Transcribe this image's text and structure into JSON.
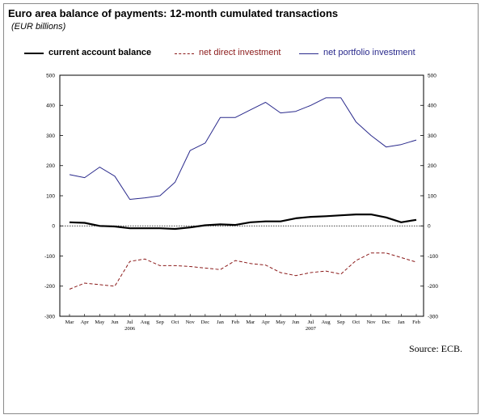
{
  "title": "Euro area balance of payments: 12-month cumulated transactions",
  "subtitle": "(EUR billions)",
  "source": "Source: ECB.",
  "legend": [
    {
      "label": "current account balance",
      "color": "#000000",
      "style": "solid-thick"
    },
    {
      "label": "net direct investment",
      "color": "#8b1a1a",
      "style": "dashed"
    },
    {
      "label": "net portfolio investment",
      "color": "#2a2a8c",
      "style": "solid"
    }
  ],
  "chart_data": {
    "type": "line",
    "x": [
      "Mar",
      "Apr",
      "May",
      "Jun",
      "Jul",
      "Aug",
      "Sep",
      "Oct",
      "Nov",
      "Dec",
      "Jan",
      "Feb",
      "Mar",
      "Apr",
      "May",
      "Jun",
      "Jul",
      "Aug",
      "Sep",
      "Oct",
      "Nov",
      "Dec",
      "Jan",
      "Feb"
    ],
    "year_labels": [
      {
        "label": "2006",
        "at_index": 4
      },
      {
        "label": "2007",
        "at_index": 16
      }
    ],
    "yticks": [
      500,
      400,
      300,
      200,
      100,
      0,
      -100,
      -200,
      -300
    ],
    "ylim": [
      -300,
      500
    ],
    "grid": false,
    "legend_placement": "top",
    "series": [
      {
        "name": "current account balance",
        "color": "#000000",
        "values": [
          12,
          10,
          0,
          -2,
          -8,
          -8,
          -8,
          -10,
          -5,
          2,
          5,
          3,
          12,
          15,
          15,
          25,
          30,
          32,
          35,
          38,
          38,
          28,
          12,
          20
        ]
      },
      {
        "name": "net direct investment",
        "color": "#8b1a1a",
        "values": [
          -210,
          -190,
          -195,
          -200,
          -118,
          -110,
          -132,
          -132,
          -135,
          -140,
          -145,
          -115,
          -125,
          -130,
          -155,
          -165,
          -155,
          -150,
          -160,
          -115,
          -90,
          -90,
          -105,
          -120
        ]
      },
      {
        "name": "net portfolio investment",
        "color": "#2a2a8c",
        "values": [
          170,
          160,
          195,
          165,
          88,
          93,
          100,
          145,
          250,
          275,
          360,
          360,
          385,
          410,
          375,
          380,
          400,
          425,
          425,
          345,
          300,
          262,
          270,
          285
        ]
      }
    ]
  }
}
